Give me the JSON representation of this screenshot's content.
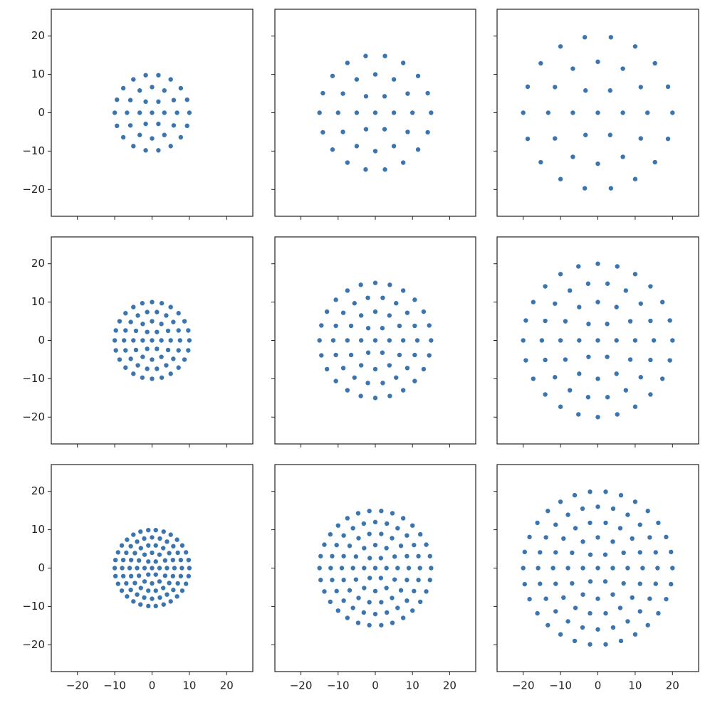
{
  "chart_data": [
    {
      "type": "scatter",
      "color": "#3a75b0",
      "xlim": [
        -27,
        27
      ],
      "ylim": [
        -27,
        27
      ],
      "xticks": [
        -20,
        -10,
        0,
        10,
        20
      ],
      "yticks": [
        {
          "value": -20,
          "label": "−20"
        },
        {
          "value": -10,
          "label": "−10"
        },
        0,
        10,
        20
      ],
      "x": [
        0,
        3.3,
        1.7,
        -1.7,
        -3.3,
        -1.7,
        1.7,
        6.7,
        5.8,
        3.3,
        0,
        -3.3,
        -5.8,
        -6.7,
        -5.8,
        -3.3,
        0,
        3.3,
        5.8,
        10,
        9.4,
        7.7,
        5,
        1.7,
        -1.7,
        -5,
        -7.7,
        -9.4,
        -10,
        -9.4,
        -7.7,
        -5,
        -1.7,
        1.7,
        5,
        7.7,
        9.4
      ],
      "y": [
        0,
        0,
        2.9,
        2.9,
        0,
        -2.9,
        -2.9,
        0,
        3.3,
        5.8,
        6.7,
        5.8,
        3.3,
        0,
        -3.3,
        -5.8,
        -6.7,
        -5.8,
        -3.3,
        0,
        3.4,
        6.4,
        8.7,
        9.8,
        9.8,
        8.7,
        6.4,
        3.4,
        0,
        -3.4,
        -6.4,
        -8.7,
        -9.8,
        -9.8,
        -8.7,
        -6.4,
        -3.4
      ]
    },
    {
      "type": "scatter",
      "color": "#3a75b0",
      "xlim": [
        -27,
        27
      ],
      "ylim": [
        -27,
        27
      ],
      "xticks": [
        -20,
        -10,
        0,
        10,
        20
      ],
      "yticks": [
        -20,
        -10,
        0,
        10,
        20
      ],
      "x": [
        0,
        5,
        2.5,
        -2.5,
        -5,
        -2.5,
        2.5,
        10,
        8.7,
        5,
        0,
        -5,
        -8.7,
        -10,
        -8.7,
        -5,
        0,
        5,
        8.7,
        15,
        14.1,
        11.5,
        7.5,
        2.6,
        -2.6,
        -7.5,
        -11.5,
        -14.1,
        -15,
        -14.1,
        -11.5,
        -7.5,
        -2.6,
        2.6,
        7.5,
        11.5,
        14.1
      ],
      "y": [
        0,
        0,
        4.3,
        4.3,
        0,
        -4.3,
        -4.3,
        0,
        5,
        8.7,
        10,
        8.7,
        5,
        0,
        -5,
        -8.7,
        -10,
        -8.7,
        -5,
        0,
        5.1,
        9.6,
        13,
        14.8,
        14.8,
        13,
        9.6,
        5.1,
        0,
        -5.1,
        -9.6,
        -13,
        -14.8,
        -14.8,
        -13,
        -9.6,
        -5.1
      ]
    },
    {
      "type": "scatter",
      "color": "#3a75b0",
      "xlim": [
        -27,
        27
      ],
      "ylim": [
        -27,
        27
      ],
      "xticks": [
        -20,
        -10,
        0,
        10,
        20
      ],
      "yticks": [
        -20,
        -10,
        0,
        10,
        20
      ],
      "x": [
        0,
        6.7,
        3.3,
        -3.3,
        -6.7,
        -3.3,
        3.3,
        13.3,
        11.5,
        6.7,
        0,
        -6.7,
        -11.5,
        -13.3,
        -11.5,
        -6.7,
        0,
        6.7,
        11.5,
        20,
        18.8,
        15.3,
        10,
        3.5,
        -3.5,
        -10,
        -15.3,
        -18.8,
        -20,
        -18.8,
        -15.3,
        -10,
        -3.5,
        3.5,
        10,
        15.3,
        18.8
      ],
      "y": [
        0,
        0,
        5.8,
        5.8,
        0,
        -5.8,
        -5.8,
        0,
        6.7,
        11.5,
        13.3,
        11.5,
        6.7,
        0,
        -6.7,
        -11.5,
        -13.3,
        -11.5,
        -6.7,
        0,
        6.8,
        12.9,
        17.3,
        19.7,
        19.7,
        17.3,
        12.9,
        6.8,
        0,
        -6.8,
        -12.9,
        -17.3,
        -19.7,
        -19.7,
        -17.3,
        -12.9,
        -6.8
      ]
    },
    {
      "type": "scatter",
      "color": "#3a75b0",
      "xlim": [
        -27,
        27
      ],
      "ylim": [
        -27,
        27
      ],
      "xticks": [
        -20,
        -10,
        0,
        10,
        20
      ],
      "yticks": [
        {
          "value": -20,
          "label": "−20"
        },
        {
          "value": -10,
          "label": "−10"
        },
        0,
        10,
        20
      ],
      "x": [
        0,
        2.5,
        1.3,
        -1.3,
        -2.5,
        -1.3,
        1.3,
        5,
        4.3,
        2.5,
        0,
        -2.5,
        -4.3,
        -5,
        -4.3,
        -2.5,
        0,
        2.5,
        4.3,
        7.5,
        7.1,
        5.7,
        3.8,
        1.3,
        -1.3,
        -3.8,
        -5.7,
        -7.1,
        -7.5,
        -7.1,
        -5.7,
        -3.8,
        -1.3,
        1.3,
        3.8,
        5.7,
        7.1,
        10,
        9.7,
        8.7,
        7.1,
        5,
        2.6,
        0,
        -2.6,
        -5,
        -7.1,
        -8.7,
        -9.7,
        -10,
        -9.7,
        -8.7,
        -7.1,
        -5,
        -2.6,
        0,
        2.6,
        5,
        7.1,
        8.7,
        9.7
      ],
      "y": [
        0,
        0,
        2.2,
        2.2,
        0,
        -2.2,
        -2.2,
        0,
        2.5,
        4.3,
        5,
        4.3,
        2.5,
        0,
        -2.5,
        -4.3,
        -5,
        -4.3,
        -2.5,
        0,
        2.6,
        4.8,
        6.5,
        7.4,
        7.4,
        6.5,
        4.8,
        2.6,
        0,
        -2.6,
        -4.8,
        -6.5,
        -7.4,
        -7.4,
        -6.5,
        -4.8,
        -2.6,
        0,
        2.6,
        5,
        7.1,
        8.7,
        9.7,
        10,
        9.7,
        8.7,
        7.1,
        5,
        2.6,
        0,
        -2.6,
        -5,
        -7.1,
        -8.7,
        -9.7,
        -10,
        -9.7,
        -8.7,
        -7.1,
        -5,
        -2.6
      ]
    },
    {
      "type": "scatter",
      "color": "#3a75b0",
      "xlim": [
        -27,
        27
      ],
      "ylim": [
        -27,
        27
      ],
      "xticks": [
        -20,
        -10,
        0,
        10,
        20
      ],
      "yticks": [
        -20,
        -10,
        0,
        10,
        20
      ],
      "x": [
        0,
        3.8,
        1.9,
        -1.9,
        -3.8,
        -1.9,
        1.9,
        7.5,
        6.5,
        3.8,
        0,
        -3.8,
        -6.5,
        -7.5,
        -6.5,
        -3.8,
        0,
        3.8,
        6.5,
        11.3,
        10.6,
        8.6,
        5.6,
        2,
        -2,
        -5.6,
        -8.6,
        -10.6,
        -11.3,
        -10.6,
        -8.6,
        -5.6,
        -2,
        2,
        5.6,
        8.6,
        10.6,
        15,
        14.5,
        13,
        10.6,
        7.5,
        3.9,
        0,
        -3.9,
        -7.5,
        -10.6,
        -13,
        -14.5,
        -15,
        -14.5,
        -13,
        -10.6,
        -7.5,
        -3.9,
        0,
        3.9,
        7.5,
        10.6,
        13,
        14.5
      ],
      "y": [
        0,
        0,
        3.2,
        3.2,
        0,
        -3.2,
        -3.2,
        0,
        3.8,
        6.5,
        7.5,
        6.5,
        3.8,
        0,
        -3.8,
        -6.5,
        -7.5,
        -6.5,
        -3.8,
        0,
        3.8,
        7.2,
        9.7,
        11.1,
        11.1,
        9.7,
        7.2,
        3.8,
        0,
        -3.8,
        -7.2,
        -9.7,
        -11.1,
        -11.1,
        -9.7,
        -7.2,
        -3.8,
        0,
        3.9,
        7.5,
        10.6,
        13,
        14.5,
        15,
        14.5,
        13,
        10.6,
        7.5,
        3.9,
        0,
        -3.9,
        -7.5,
        -10.6,
        -13,
        -14.5,
        -15,
        -14.5,
        -13,
        -10.6,
        -7.5,
        -3.9
      ]
    },
    {
      "type": "scatter",
      "color": "#3a75b0",
      "xlim": [
        -27,
        27
      ],
      "ylim": [
        -27,
        27
      ],
      "xticks": [
        -20,
        -10,
        0,
        10,
        20
      ],
      "yticks": [
        -20,
        -10,
        0,
        10,
        20
      ],
      "x": [
        0,
        5,
        2.5,
        -2.5,
        -5,
        -2.5,
        2.5,
        10,
        8.7,
        5,
        0,
        -5,
        -8.7,
        -10,
        -8.7,
        -5,
        0,
        5,
        8.7,
        15,
        14.1,
        11.5,
        7.5,
        2.6,
        -2.6,
        -7.5,
        -11.5,
        -14.1,
        -15,
        -14.1,
        -11.5,
        -7.5,
        -2.6,
        2.6,
        7.5,
        11.5,
        14.1,
        20,
        19.3,
        17.3,
        14.1,
        10,
        5.2,
        0,
        -5.2,
        -10,
        -14.1,
        -17.3,
        -19.3,
        -20,
        -19.3,
        -17.3,
        -14.1,
        -10,
        -5.2,
        0,
        5.2,
        10,
        14.1,
        17.3,
        19.3
      ],
      "y": [
        0,
        0,
        4.3,
        4.3,
        0,
        -4.3,
        -4.3,
        0,
        5,
        8.7,
        10,
        8.7,
        5,
        0,
        -5,
        -8.7,
        -10,
        -8.7,
        -5,
        0,
        5.1,
        9.6,
        13,
        14.8,
        14.8,
        13,
        9.6,
        5.1,
        0,
        -5.1,
        -9.6,
        -13,
        -14.8,
        -14.8,
        -13,
        -9.6,
        -5.1,
        0,
        5.2,
        10,
        14.1,
        17.3,
        19.3,
        20,
        19.3,
        17.3,
        14.1,
        10,
        5.2,
        0,
        -5.2,
        -10,
        -14.1,
        -17.3,
        -19.3,
        -20,
        -19.3,
        -17.3,
        -14.1,
        -10,
        -5.2
      ]
    },
    {
      "type": "scatter",
      "color": "#3a75b0",
      "xlim": [
        -27,
        27
      ],
      "ylim": [
        -27,
        27
      ],
      "xticks": [
        {
          "value": -20,
          "label": "−20"
        },
        {
          "value": -10,
          "label": "−10"
        },
        0,
        10,
        20
      ],
      "yticks": [
        {
          "value": -20,
          "label": "−20"
        },
        {
          "value": -10,
          "label": "−10"
        },
        0,
        10,
        20
      ],
      "x": [
        0,
        2,
        1,
        -1,
        -2,
        -1,
        1,
        4,
        3.5,
        2,
        0,
        -2,
        -3.5,
        -4,
        -3.5,
        -2,
        0,
        2,
        3.5,
        6,
        5.6,
        4.6,
        3,
        1,
        -1,
        -3,
        -4.6,
        -5.6,
        -6,
        -5.6,
        -4.6,
        -3,
        -1,
        1,
        3,
        4.6,
        5.6,
        8,
        7.7,
        6.9,
        5.7,
        4,
        2.1,
        0,
        -2.1,
        -4,
        -5.7,
        -6.9,
        -7.7,
        -8,
        -7.7,
        -6.9,
        -5.7,
        -4,
        -2.1,
        0,
        2.1,
        4,
        5.7,
        6.9,
        7.7,
        10,
        9.8,
        9.1,
        8.1,
        6.7,
        5,
        3.1,
        1,
        -1,
        -3.1,
        -5,
        -6.7,
        -8.1,
        -9.1,
        -9.8,
        -10,
        -9.8,
        -9.1,
        -8.1,
        -6.7,
        -5,
        -3.1,
        -1,
        1,
        3.1,
        5,
        6.7,
        8.1,
        9.1,
        9.8
      ],
      "y": [
        0,
        0,
        1.7,
        1.7,
        0,
        -1.7,
        -1.7,
        0,
        2,
        3.5,
        4,
        3.5,
        2,
        0,
        -2,
        -3.5,
        -4,
        -3.5,
        -2,
        0,
        2.1,
        3.9,
        5.2,
        5.9,
        5.9,
        5.2,
        3.9,
        2.1,
        0,
        -2.1,
        -3.9,
        -5.2,
        -5.9,
        -5.9,
        -5.2,
        -3.9,
        -2.1,
        0,
        2.1,
        4,
        5.7,
        6.9,
        7.7,
        8,
        7.7,
        6.9,
        5.7,
        4,
        2.1,
        0,
        -2.1,
        -4,
        -5.7,
        -6.9,
        -7.7,
        -8,
        -7.7,
        -6.9,
        -5.7,
        -4,
        -2.1,
        0,
        2.1,
        4.1,
        5.9,
        7.4,
        8.7,
        9.5,
        9.9,
        9.9,
        9.5,
        8.7,
        7.4,
        5.9,
        4.1,
        2.1,
        0,
        -2.1,
        -4.1,
        -5.9,
        -7.4,
        -8.7,
        -9.5,
        -9.9,
        -9.9,
        -9.5,
        -8.7,
        -7.4,
        -5.9,
        -4.1,
        -2.1
      ]
    },
    {
      "type": "scatter",
      "color": "#3a75b0",
      "xlim": [
        -27,
        27
      ],
      "ylim": [
        -27,
        27
      ],
      "xticks": [
        {
          "value": -20,
          "label": "−20"
        },
        {
          "value": -10,
          "label": "−10"
        },
        0,
        10,
        20
      ],
      "yticks": [
        -20,
        -10,
        0,
        10,
        20
      ],
      "x": [
        0,
        3,
        1.5,
        -1.5,
        -3,
        -1.5,
        1.5,
        6,
        5.2,
        3,
        0,
        -3,
        -5.2,
        -6,
        -5.2,
        -3,
        0,
        3,
        5.2,
        9,
        8.5,
        6.9,
        4.5,
        1.6,
        -1.6,
        -4.5,
        -6.9,
        -8.5,
        -9,
        -8.5,
        -6.9,
        -4.5,
        -1.6,
        1.6,
        4.5,
        6.9,
        8.5,
        12,
        11.6,
        10.4,
        8.5,
        6,
        3.1,
        0,
        -3.1,
        -6,
        -8.5,
        -10.4,
        -11.6,
        -12,
        -11.6,
        -10.4,
        -8.5,
        -6,
        -3.1,
        0,
        3.1,
        6,
        8.5,
        10.4,
        11.6,
        15,
        14.7,
        13.7,
        12.1,
        10,
        7.5,
        4.6,
        1.6,
        -1.6,
        -4.6,
        -7.5,
        -10,
        -12.1,
        -13.7,
        -14.7,
        -15,
        -14.7,
        -13.7,
        -12.1,
        -10,
        -7.5,
        -4.6,
        -1.6,
        1.6,
        4.6,
        7.5,
        10,
        12.1,
        13.7,
        14.7
      ],
      "y": [
        0,
        0,
        2.6,
        2.6,
        0,
        -2.6,
        -2.6,
        0,
        3,
        5.2,
        6,
        5.2,
        3,
        0,
        -3,
        -5.2,
        -6,
        -5.2,
        -3,
        0,
        3.1,
        5.8,
        7.8,
        8.9,
        8.9,
        7.8,
        5.8,
        3.1,
        0,
        -3.1,
        -5.8,
        -7.8,
        -8.9,
        -8.9,
        -7.8,
        -5.8,
        -3.1,
        0,
        3.1,
        6,
        8.5,
        10.4,
        11.6,
        12,
        11.6,
        10.4,
        8.5,
        6,
        3.1,
        0,
        -3.1,
        -6,
        -8.5,
        -10.4,
        -11.6,
        -12,
        -11.6,
        -10.4,
        -8.5,
        -6,
        -3.1,
        0,
        3.1,
        6.1,
        8.8,
        11.1,
        13,
        14.3,
        14.9,
        14.9,
        14.3,
        13,
        11.1,
        8.8,
        6.1,
        3.1,
        0,
        -3.1,
        -6.1,
        -8.8,
        -11.1,
        -13,
        -14.3,
        -14.9,
        -14.9,
        -14.3,
        -13,
        -11.1,
        -8.8,
        -6.1,
        -3.1
      ]
    },
    {
      "type": "scatter",
      "color": "#3a75b0",
      "xlim": [
        -27,
        27
      ],
      "ylim": [
        -27,
        27
      ],
      "xticks": [
        {
          "value": -20,
          "label": "−20"
        },
        {
          "value": -10,
          "label": "−10"
        },
        0,
        10,
        20
      ],
      "yticks": [
        -20,
        -10,
        0,
        10,
        20
      ],
      "x": [
        0,
        4,
        2,
        -2,
        -4,
        -2,
        2,
        8,
        6.9,
        4,
        0,
        -4,
        -6.9,
        -8,
        -6.9,
        -4,
        0,
        4,
        6.9,
        12,
        11.3,
        9.2,
        6,
        2.1,
        -2.1,
        -6,
        -9.2,
        -11.3,
        -12,
        -11.3,
        -9.2,
        -6,
        -2.1,
        2.1,
        6,
        9.2,
        11.3,
        16,
        15.5,
        13.9,
        11.3,
        8,
        4.1,
        0,
        -4.1,
        -8,
        -11.3,
        -13.9,
        -15.5,
        -16,
        -15.5,
        -13.9,
        -11.3,
        -8,
        -4.1,
        0,
        4.1,
        8,
        11.3,
        13.9,
        15.5,
        20,
        19.6,
        18.3,
        16.2,
        13.4,
        10,
        6.2,
        2.1,
        -2.1,
        -6.2,
        -10,
        -13.4,
        -16.2,
        -18.3,
        -19.6,
        -20,
        -19.6,
        -18.3,
        -16.2,
        -13.4,
        -10,
        -6.2,
        -2.1,
        2.1,
        6.2,
        10,
        13.4,
        16.2,
        18.3,
        19.6
      ],
      "y": [
        0,
        0,
        3.5,
        3.5,
        0,
        -3.5,
        -3.5,
        0,
        4,
        6.9,
        8,
        6.9,
        4,
        0,
        -4,
        -6.9,
        -8,
        -6.9,
        -4,
        0,
        4.1,
        7.7,
        10.4,
        11.8,
        11.8,
        10.4,
        7.7,
        4.1,
        0,
        -4.1,
        -7.7,
        -10.4,
        -11.8,
        -11.8,
        -10.4,
        -7.7,
        -4.1,
        0,
        4.1,
        8,
        11.3,
        13.9,
        15.5,
        16,
        15.5,
        13.9,
        11.3,
        8,
        4.1,
        0,
        -4.1,
        -8,
        -11.3,
        -13.9,
        -15.5,
        -16,
        -15.5,
        -13.9,
        -11.3,
        -8,
        -4.1,
        0,
        4.2,
        8.1,
        11.8,
        14.9,
        17.3,
        19,
        19.9,
        19.9,
        19,
        17.3,
        14.9,
        11.8,
        8.1,
        4.2,
        0,
        -4.2,
        -8.1,
        -11.8,
        -14.9,
        -17.3,
        -19,
        -19.9,
        -19.9,
        -19,
        -17.3,
        -14.9,
        -11.8,
        -8.1,
        -4.2
      ]
    }
  ]
}
